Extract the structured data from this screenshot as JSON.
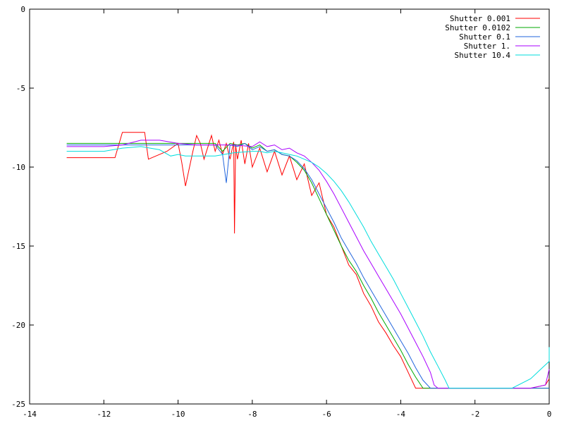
{
  "chart_data": {
    "type": "line",
    "title": "",
    "xlabel": "",
    "ylabel": "",
    "xlim": [
      -14,
      0
    ],
    "ylim": [
      -25,
      0
    ],
    "grid": false,
    "legend_position": "top-right",
    "x_ticks": [
      -14,
      -12,
      -10,
      -8,
      -6,
      -4,
      -2,
      0
    ],
    "y_ticks": [
      0,
      -5,
      -10,
      -15,
      -20,
      -25
    ],
    "x_tick_labels": [
      "-14",
      "-12",
      "-10",
      "-8",
      "-6",
      "-4",
      "-2",
      "0"
    ],
    "y_tick_labels": [
      "0",
      "-5",
      "-10",
      "-15",
      "-20",
      "-25"
    ],
    "series": [
      {
        "name": "Shutter 0.001",
        "color": "#ff0000",
        "x": [
          -13.0,
          -11.7,
          -11.5,
          -11.2,
          -10.9,
          -10.8,
          -10.5,
          -10.3,
          -10.0,
          -9.9,
          -9.8,
          -9.6,
          -9.5,
          -9.4,
          -9.3,
          -9.1,
          -9.0,
          -8.9,
          -8.8,
          -8.7,
          -8.6,
          -8.5,
          -8.48,
          -8.45,
          -8.4,
          -8.3,
          -8.2,
          -8.1,
          -8.0,
          -7.8,
          -7.6,
          -7.4,
          -7.2,
          -7.0,
          -6.8,
          -6.6,
          -6.4,
          -6.2,
          -6.0,
          -5.8,
          -5.6,
          -5.4,
          -5.2,
          -5.0,
          -4.8,
          -4.6,
          -4.4,
          -4.2,
          -4.0,
          -3.8,
          -3.6,
          -3.45,
          -3.3,
          -3.0,
          -2.0,
          -1.0,
          -0.5,
          -0.1,
          0.0
        ],
        "y": [
          -9.4,
          -9.4,
          -7.8,
          -7.8,
          -7.8,
          -9.5,
          -9.2,
          -9.0,
          -8.5,
          -9.7,
          -11.2,
          -9.0,
          -8.0,
          -8.5,
          -9.5,
          -8.0,
          -9.0,
          -8.3,
          -9.2,
          -8.5,
          -9.5,
          -8.4,
          -14.2,
          -8.6,
          -9.5,
          -8.3,
          -9.8,
          -8.5,
          -10.0,
          -8.8,
          -10.3,
          -9.0,
          -10.5,
          -9.3,
          -10.8,
          -9.8,
          -11.8,
          -11.0,
          -13.0,
          -13.8,
          -15.0,
          -16.2,
          -16.8,
          -18.0,
          -18.8,
          -19.8,
          -20.5,
          -21.3,
          -22.0,
          -23.0,
          -24.0,
          -24.0,
          -24.0,
          -24.0,
          -24.0,
          -24.0,
          -24.0,
          -23.8,
          -23.4
        ]
      },
      {
        "name": "Shutter 0.0102",
        "color": "#00aa00",
        "x": [
          -13.0,
          -12.0,
          -11.5,
          -11.0,
          -10.5,
          -10.0,
          -9.5,
          -9.0,
          -8.8,
          -8.6,
          -8.4,
          -8.2,
          -8.0,
          -7.8,
          -7.6,
          -7.4,
          -7.2,
          -7.0,
          -6.8,
          -6.6,
          -6.4,
          -6.2,
          -6.0,
          -5.8,
          -5.6,
          -5.4,
          -5.2,
          -5.0,
          -4.8,
          -4.6,
          -4.4,
          -4.2,
          -4.0,
          -3.8,
          -3.6,
          -3.4,
          -3.3,
          -3.0,
          -2.0,
          -1.0,
          0.0
        ],
        "y": [
          -8.5,
          -8.5,
          -8.5,
          -8.5,
          -8.5,
          -8.5,
          -8.5,
          -8.5,
          -9.0,
          -8.5,
          -8.6,
          -8.5,
          -8.8,
          -8.6,
          -9.0,
          -8.9,
          -9.2,
          -9.3,
          -9.7,
          -10.2,
          -11.0,
          -12.0,
          -13.0,
          -14.0,
          -15.0,
          -15.9,
          -16.6,
          -17.5,
          -18.3,
          -19.2,
          -20.0,
          -20.8,
          -21.6,
          -22.5,
          -23.3,
          -24.0,
          -24.0,
          -24.0,
          -24.0,
          -24.0,
          -24.0
        ]
      },
      {
        "name": "Shutter 0.1",
        "color": "#2266dd",
        "x": [
          -13.0,
          -12.0,
          -11.5,
          -11.0,
          -10.5,
          -10.0,
          -9.5,
          -9.0,
          -8.8,
          -8.7,
          -8.6,
          -8.4,
          -8.2,
          -8.0,
          -7.8,
          -7.6,
          -7.4,
          -7.2,
          -7.0,
          -6.8,
          -6.6,
          -6.4,
          -6.2,
          -6.0,
          -5.8,
          -5.6,
          -5.4,
          -5.2,
          -5.0,
          -4.8,
          -4.6,
          -4.4,
          -4.2,
          -4.0,
          -3.8,
          -3.6,
          -3.4,
          -3.2,
          -3.0,
          -2.0,
          -1.0,
          0.0
        ],
        "y": [
          -8.6,
          -8.6,
          -8.6,
          -8.6,
          -8.6,
          -8.6,
          -8.6,
          -8.6,
          -9.2,
          -11.0,
          -8.6,
          -8.7,
          -8.5,
          -8.9,
          -8.7,
          -9.0,
          -8.9,
          -9.2,
          -9.3,
          -9.6,
          -10.1,
          -10.8,
          -11.7,
          -12.6,
          -13.5,
          -14.5,
          -15.3,
          -16.1,
          -17.0,
          -17.8,
          -18.6,
          -19.4,
          -20.2,
          -21.0,
          -21.8,
          -22.7,
          -23.5,
          -24.0,
          -24.0,
          -24.0,
          -24.0,
          -24.0
        ]
      },
      {
        "name": "Shutter 1.",
        "color": "#aa00ff",
        "x": [
          -13.0,
          -12.0,
          -11.5,
          -11.0,
          -10.5,
          -10.0,
          -9.5,
          -9.0,
          -8.5,
          -8.0,
          -7.8,
          -7.6,
          -7.4,
          -7.2,
          -7.0,
          -6.8,
          -6.6,
          -6.4,
          -6.2,
          -6.0,
          -5.8,
          -5.6,
          -5.4,
          -5.2,
          -5.0,
          -4.8,
          -4.6,
          -4.4,
          -4.2,
          -4.0,
          -3.8,
          -3.6,
          -3.4,
          -3.2,
          -3.1,
          -3.0,
          -2.0,
          -1.0,
          -0.5,
          -0.1,
          0.0
        ],
        "y": [
          -8.7,
          -8.7,
          -8.6,
          -8.3,
          -8.3,
          -8.5,
          -8.6,
          -8.6,
          -8.6,
          -8.7,
          -8.4,
          -8.7,
          -8.6,
          -8.9,
          -8.8,
          -9.1,
          -9.3,
          -9.7,
          -10.2,
          -10.9,
          -11.7,
          -12.6,
          -13.5,
          -14.4,
          -15.3,
          -16.1,
          -16.9,
          -17.7,
          -18.5,
          -19.3,
          -20.2,
          -21.1,
          -22.0,
          -23.0,
          -23.8,
          -24.0,
          -24.0,
          -24.0,
          -24.0,
          -23.8,
          -22.8
        ]
      },
      {
        "name": "Shutter 10.4",
        "color": "#00dddd",
        "x": [
          -13.0,
          -12.0,
          -11.5,
          -11.0,
          -10.5,
          -10.2,
          -10.0,
          -9.8,
          -9.5,
          -9.0,
          -8.5,
          -8.0,
          -7.8,
          -7.6,
          -7.4,
          -7.2,
          -7.0,
          -6.8,
          -6.6,
          -6.4,
          -6.2,
          -6.0,
          -5.8,
          -5.6,
          -5.4,
          -5.2,
          -5.0,
          -4.8,
          -4.6,
          -4.4,
          -4.2,
          -4.0,
          -3.8,
          -3.6,
          -3.4,
          -3.2,
          -3.0,
          -2.8,
          -2.7,
          -2.0,
          -1.0,
          -0.5,
          0.0,
          0.0
        ],
        "y": [
          -9.0,
          -9.0,
          -8.8,
          -8.7,
          -8.9,
          -9.3,
          -9.2,
          -9.3,
          -9.3,
          -9.3,
          -9.1,
          -9.0,
          -9.0,
          -9.1,
          -9.0,
          -9.1,
          -9.2,
          -9.3,
          -9.5,
          -9.7,
          -10.0,
          -10.4,
          -10.9,
          -11.5,
          -12.2,
          -13.0,
          -13.8,
          -14.7,
          -15.5,
          -16.3,
          -17.1,
          -18.0,
          -18.9,
          -19.8,
          -20.7,
          -21.7,
          -22.6,
          -23.5,
          -24.0,
          -24.0,
          -24.0,
          -23.4,
          -22.3,
          -21.4
        ]
      }
    ]
  }
}
